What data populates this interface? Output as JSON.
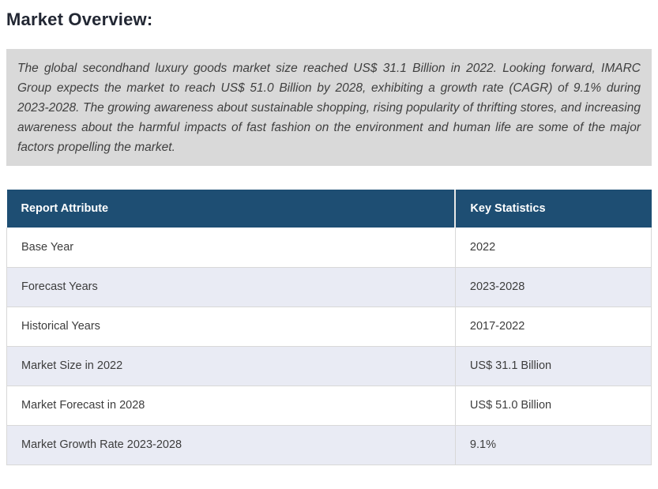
{
  "page": {
    "title": "Market Overview:",
    "overview_paragraph": "The global secondhand luxury goods market size reached US$ 31.1 Billion in 2022. Looking forward, IMARC Group expects the market to reach US$ 51.0 Billion by 2028, exhibiting a growth rate (CAGR) of 9.1% during 2023-2028. The growing awareness about sustainable shopping, rising popularity of thrifting stores, and increasing awareness about the harmful impacts of fast fashion on the environment and human life are some of the major factors propelling the market."
  },
  "table": {
    "headers": [
      "Report Attribute",
      "Key Statistics"
    ],
    "rows": [
      {
        "attribute": "Base Year",
        "value": "2022"
      },
      {
        "attribute": "Forecast Years",
        "value": "2023-2028"
      },
      {
        "attribute": "Historical Years",
        "value": "2017-2022"
      },
      {
        "attribute": "Market Size in 2022",
        "value": "US$ 31.1 Billion"
      },
      {
        "attribute": "Market Forecast in 2028",
        "value": "US$ 51.0 Billion"
      },
      {
        "attribute": "Market Growth Rate 2023-2028",
        "value": "9.1%"
      }
    ]
  },
  "colors": {
    "table_header_bg": "#1e4e73",
    "table_header_text": "#ffffff",
    "row_bg": "#ffffff",
    "row_alt_bg": "#e9ebf4",
    "overview_box_bg": "#d9d9d9",
    "heading_text": "#222733",
    "body_text": "#3d3d3d"
  }
}
